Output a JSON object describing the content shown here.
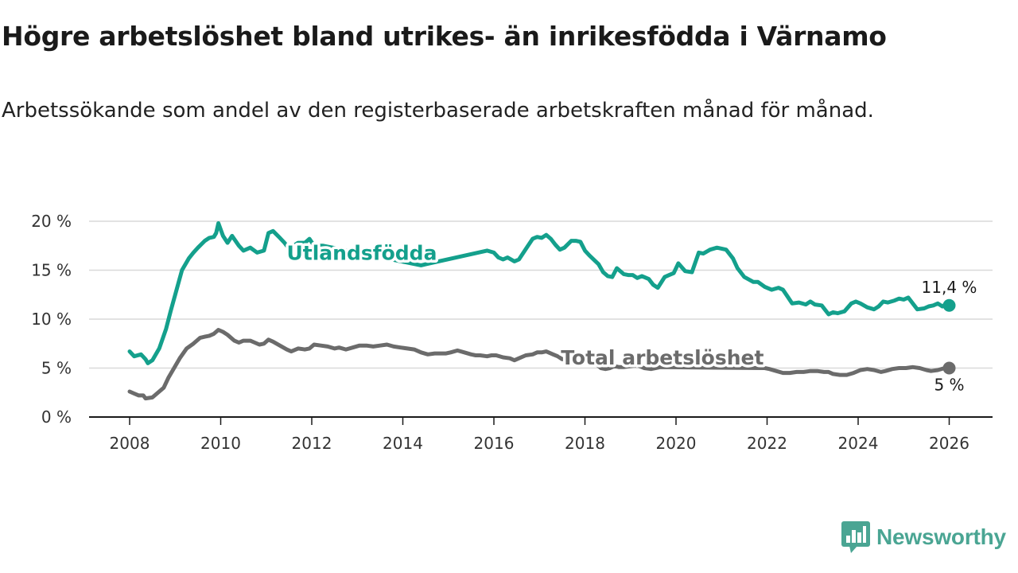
{
  "header": {
    "title": "Högre arbetslöshet bland utrikes- än inrikesfödda i Värnamo",
    "subtitle": "Arbetssökande som andel av den registerbaserade arbetskraften månad för månad."
  },
  "brand": {
    "name": "Newsworthy",
    "icon": "newsworthy-logo-icon",
    "color": "#4aa593"
  },
  "chart_data": {
    "type": "line",
    "title": "Högre arbetslöshet bland utrikes- än inrikesfödda i Värnamo",
    "subtitle": "Arbetssökande som andel av den registerbaserade arbetskraften månad för månad.",
    "xlabel": "",
    "ylabel": "",
    "xlim": [
      2007.3,
      2027.0
    ],
    "ylim": [
      0,
      20
    ],
    "grid": true,
    "x_ticks": [
      2008,
      2010,
      2012,
      2014,
      2016,
      2018,
      2020,
      2022,
      2024,
      2026
    ],
    "x_tick_labels": [
      "2008",
      "2010",
      "2012",
      "2014",
      "2016",
      "2018",
      "2020",
      "2022",
      "2024",
      "2026"
    ],
    "y_ticks": [
      0,
      5,
      10,
      15,
      20
    ],
    "y_tick_labels": [
      "0 %",
      "5 %",
      "10 %",
      "15 %",
      "20 %"
    ],
    "series": [
      {
        "name": "Utlandsfödda",
        "color": "#14a08c",
        "end_label": "11,4 %",
        "x": [
          2008.0,
          2008.1,
          2008.25,
          2008.35,
          2008.4,
          2008.5,
          2008.65,
          2008.8,
          2008.9,
          2009.0,
          2009.15,
          2009.3,
          2009.4,
          2009.5,
          2009.65,
          2009.75,
          2009.85,
          2009.9,
          2009.95,
          2010.05,
          2010.15,
          2010.25,
          2010.4,
          2010.5,
          2010.65,
          2010.8,
          2010.95,
          2011.05,
          2011.15,
          2011.3,
          2011.4,
          2011.5,
          2011.7,
          2011.85,
          2011.95,
          2012.05,
          2012.25,
          2014.4,
          2014.5,
          2015.85,
          2016.0,
          2016.1,
          2016.2,
          2016.3,
          2016.45,
          2016.55,
          2016.65,
          2016.75,
          2016.85,
          2016.95,
          2017.05,
          2017.15,
          2017.25,
          2017.35,
          2017.45,
          2017.55,
          2017.7,
          2017.8,
          2017.9,
          2018.0,
          2018.1,
          2018.3,
          2018.4,
          2018.5,
          2018.6,
          2018.7,
          2018.85,
          2018.95,
          2019.05,
          2019.15,
          2019.25,
          2019.4,
          2019.5,
          2019.6,
          2019.75,
          2019.85,
          2019.95,
          2020.05,
          2020.2,
          2020.35,
          2020.5,
          2020.6,
          2020.75,
          2020.9,
          2021.0,
          2021.1,
          2021.25,
          2021.35,
          2021.5,
          2021.7,
          2021.8,
          2021.95,
          2022.1,
          2022.25,
          2022.35,
          2022.45,
          2022.55,
          2022.7,
          2022.85,
          2022.95,
          2023.05,
          2023.2,
          2023.35,
          2023.45,
          2023.55,
          2023.7,
          2023.85,
          2023.95,
          2024.05,
          2024.2,
          2024.35,
          2024.45,
          2024.55,
          2024.65,
          2024.8,
          2024.9,
          2025.0,
          2025.1,
          2025.2,
          2025.3,
          2025.45,
          2025.55,
          2025.65,
          2025.75,
          2025.85,
          2025.95,
          2026.0
        ],
        "y": [
          6.7,
          6.2,
          6.4,
          5.9,
          5.5,
          5.8,
          7.0,
          9.0,
          10.8,
          12.5,
          15.0,
          16.2,
          16.8,
          17.3,
          18.0,
          18.3,
          18.4,
          18.8,
          19.8,
          18.5,
          17.8,
          18.5,
          17.5,
          17.0,
          17.3,
          16.8,
          17.0,
          18.8,
          19.0,
          18.3,
          17.8,
          17.2,
          17.8,
          17.8,
          18.2,
          17.5,
          17.5,
          15.5,
          15.6,
          17.0,
          16.8,
          16.3,
          16.1,
          16.3,
          15.9,
          16.1,
          16.8,
          17.5,
          18.2,
          18.4,
          18.3,
          18.6,
          18.2,
          17.6,
          17.1,
          17.3,
          18.0,
          18.0,
          17.9,
          17.0,
          16.5,
          15.6,
          14.8,
          14.4,
          14.3,
          15.2,
          14.6,
          14.5,
          14.5,
          14.2,
          14.4,
          14.1,
          13.5,
          13.2,
          14.3,
          14.5,
          14.7,
          15.7,
          14.9,
          14.8,
          16.8,
          16.7,
          17.1,
          17.3,
          17.2,
          17.1,
          16.2,
          15.2,
          14.3,
          13.8,
          13.8,
          13.3,
          13.0,
          13.2,
          13.0,
          12.3,
          11.6,
          11.7,
          11.5,
          11.8,
          11.5,
          11.4,
          10.5,
          10.7,
          10.6,
          10.8,
          11.6,
          11.8,
          11.6,
          11.2,
          11.0,
          11.3,
          11.8,
          11.7,
          11.9,
          12.1,
          12.0,
          12.2,
          11.6,
          11.0,
          11.1,
          11.3,
          11.4,
          11.6,
          11.3,
          11.6,
          11.4
        ]
      },
      {
        "name": "Total arbetslöshet",
        "color": "#6b6b6b",
        "end_label": "5 %",
        "x": [
          2008.0,
          2008.1,
          2008.2,
          2008.3,
          2008.35,
          2008.5,
          2008.6,
          2008.75,
          2008.85,
          2008.95,
          2009.1,
          2009.25,
          2009.4,
          2009.55,
          2009.65,
          2009.75,
          2009.85,
          2009.95,
          2010.05,
          2010.15,
          2010.3,
          2010.4,
          2010.5,
          2010.65,
          2010.75,
          2010.85,
          2010.95,
          2011.05,
          2011.15,
          2011.3,
          2011.45,
          2011.55,
          2011.7,
          2011.85,
          2011.95,
          2012.05,
          2012.2,
          2012.35,
          2012.5,
          2012.6,
          2012.75,
          2012.9,
          2013.05,
          2013.2,
          2013.35,
          2013.5,
          2013.65,
          2013.8,
          2013.95,
          2014.1,
          2014.25,
          2014.4,
          2014.55,
          2014.7,
          2014.85,
          2014.95,
          2015.05,
          2015.2,
          2015.35,
          2015.5,
          2015.6,
          2015.7,
          2015.85,
          2015.95,
          2016.05,
          2016.2,
          2016.35,
          2016.45,
          2016.55,
          2016.7,
          2016.85,
          2016.95,
          2017.05,
          2017.15,
          2017.3,
          2017.4,
          2017.5,
          2017.65,
          2017.75,
          2017.8,
          2018.25,
          2018.35,
          2018.45,
          2018.55,
          2018.65,
          2018.75,
          2018.85,
          2019.0,
          2019.15,
          2019.3,
          2019.45,
          2019.55,
          2019.65,
          2021.95,
          2022.05,
          2022.2,
          2022.35,
          2022.5,
          2022.65,
          2022.8,
          2022.95,
          2023.1,
          2023.25,
          2023.35,
          2023.45,
          2023.6,
          2023.75,
          2023.9,
          2024.05,
          2024.2,
          2024.35,
          2024.5,
          2024.6,
          2024.75,
          2024.9,
          2025.05,
          2025.2,
          2025.35,
          2025.5,
          2025.6,
          2025.75,
          2025.9,
          2026.0
        ],
        "y": [
          2.6,
          2.4,
          2.2,
          2.2,
          1.9,
          2.0,
          2.4,
          3.0,
          4.0,
          4.8,
          6.0,
          7.0,
          7.5,
          8.1,
          8.2,
          8.3,
          8.5,
          8.9,
          8.7,
          8.4,
          7.8,
          7.6,
          7.8,
          7.8,
          7.6,
          7.4,
          7.5,
          7.9,
          7.7,
          7.3,
          6.9,
          6.7,
          7.0,
          6.9,
          7.0,
          7.4,
          7.3,
          7.2,
          7.0,
          7.1,
          6.9,
          7.1,
          7.3,
          7.3,
          7.2,
          7.3,
          7.4,
          7.2,
          7.1,
          7.0,
          6.9,
          6.6,
          6.4,
          6.5,
          6.5,
          6.5,
          6.6,
          6.8,
          6.6,
          6.4,
          6.3,
          6.3,
          6.2,
          6.3,
          6.3,
          6.1,
          6.0,
          5.8,
          6.0,
          6.3,
          6.4,
          6.6,
          6.6,
          6.7,
          6.4,
          6.2,
          5.9,
          6.0,
          6.1,
          6.2,
          5.4,
          5.0,
          4.9,
          5.0,
          5.2,
          5.1,
          5.1,
          5.2,
          5.3,
          5.0,
          4.9,
          5.0,
          5.1,
          5.0,
          4.9,
          4.7,
          4.5,
          4.5,
          4.6,
          4.6,
          4.7,
          4.7,
          4.6,
          4.6,
          4.4,
          4.3,
          4.3,
          4.5,
          4.8,
          4.9,
          4.8,
          4.6,
          4.7,
          4.9,
          5.0,
          5.0,
          5.1,
          5.0,
          4.8,
          4.7,
          4.8,
          5.0,
          5.0
        ]
      }
    ],
    "annotations": [
      {
        "text": "Utlandsfödda",
        "series": "Utlandsfödda",
        "at_x": 2013.1,
        "at_y": 16.8
      },
      {
        "text": "Total arbetslöshet",
        "series": "Total arbetslöshet",
        "at_x": 2019.7,
        "at_y": 6.1
      }
    ]
  }
}
